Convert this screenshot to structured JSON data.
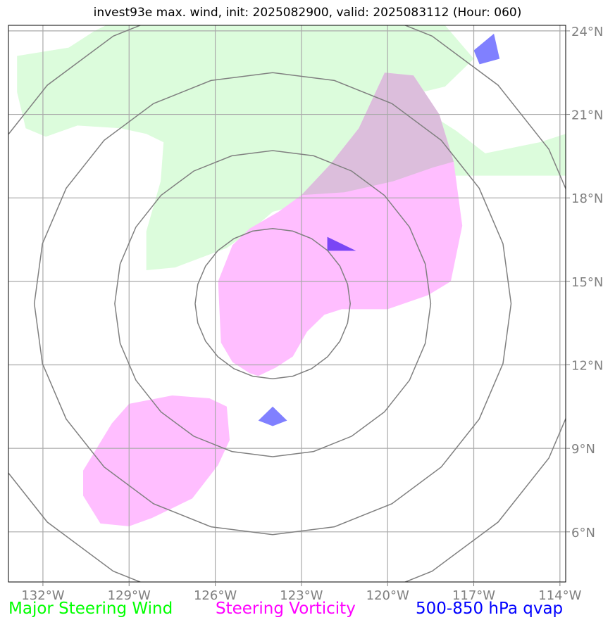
{
  "title": "invest93e max. wind, init: 2025082900, valid: 2025083112 (Hour: 060)",
  "colors": {
    "steering_wind": "#00ff00",
    "steering_vorticity": "#ff00ff",
    "qvap": "#0000ff",
    "wind_fill": "#dcfcdc",
    "vorticity_fill": "#ffbeff",
    "overlap_fill": "#dcbedc",
    "qvap_fill": "#8080ff",
    "qvap_dark_fill": "#7a45f5",
    "grid": "#aaaaaa",
    "range_ring": "#808080",
    "tick_text": "#808080"
  },
  "map": {
    "projection": "lat-lon",
    "lon_range": [
      -133.2,
      -113.8
    ],
    "lat_range": [
      4.2,
      24.2
    ],
    "grid": true,
    "center": {
      "lon": -124.0,
      "lat": 14.2
    },
    "range_rings_deg": [
      2.7,
      5.5,
      8.3,
      11.1
    ],
    "lon_ticks": [
      {
        "value": -132,
        "label": "132°W"
      },
      {
        "value": -129,
        "label": "129°W"
      },
      {
        "value": -126,
        "label": "126°W"
      },
      {
        "value": -123,
        "label": "123°W"
      },
      {
        "value": -120,
        "label": "120°W"
      },
      {
        "value": -117,
        "label": "117°W"
      },
      {
        "value": -114,
        "label": "114°W"
      }
    ],
    "lat_ticks": [
      {
        "value": 24,
        "label": "24°N"
      },
      {
        "value": 21,
        "label": "21°N"
      },
      {
        "value": 18,
        "label": "18°N"
      },
      {
        "value": 15,
        "label": "15°N"
      },
      {
        "value": 12,
        "label": "12°N"
      },
      {
        "value": 9,
        "label": "9°N"
      },
      {
        "value": 6,
        "label": "6°N"
      }
    ]
  },
  "regions": {
    "steering_wind": [
      [
        [
          -129.8,
          24.2
        ],
        [
          -118.0,
          24.2
        ],
        [
          -117.0,
          23.0
        ],
        [
          -118.0,
          22.0
        ],
        [
          -118.8,
          21.8
        ],
        [
          -118.5,
          21.0
        ],
        [
          -117.6,
          20.4
        ],
        [
          -116.6,
          19.6
        ],
        [
          -114.7,
          20.0
        ],
        [
          -113.8,
          20.3
        ],
        [
          -113.8,
          18.8
        ],
        [
          -118.0,
          18.8
        ],
        [
          -121.5,
          18.2
        ],
        [
          -124.0,
          17.5
        ],
        [
          -124.8,
          16.8
        ],
        [
          -125.6,
          16.2
        ],
        [
          -127.4,
          15.5
        ],
        [
          -128.4,
          15.4
        ],
        [
          -128.4,
          16.8
        ],
        [
          -127.9,
          18.6
        ],
        [
          -127.8,
          20.0
        ],
        [
          -128.4,
          20.3
        ],
        [
          -129.3,
          20.5
        ],
        [
          -130.8,
          20.6
        ],
        [
          -131.9,
          20.2
        ],
        [
          -132.6,
          20.5
        ],
        [
          -132.9,
          21.8
        ],
        [
          -132.9,
          23.1
        ],
        [
          -131.1,
          23.4
        ],
        [
          -130.2,
          24.0
        ]
      ],
      [
        [
          -125.5,
          23.0
        ],
        [
          -123.5,
          23.0
        ],
        [
          -122.1,
          22.7
        ],
        [
          -121.2,
          21.8
        ],
        [
          -122.7,
          21.3
        ],
        [
          -124.5,
          21.0
        ],
        [
          -126.5,
          21.0
        ],
        [
          -126.0,
          21.8
        ]
      ],
      [
        [
          -129.8,
          24.2
        ],
        [
          -128.0,
          24.2
        ],
        [
          -128.5,
          23.5
        ],
        [
          -129.5,
          23.3
        ],
        [
          -130.0,
          23.7
        ]
      ]
    ],
    "steering_vorticity": [
      [
        [
          -120.1,
          22.5
        ],
        [
          -119.1,
          22.4
        ],
        [
          -118.2,
          21.0
        ],
        [
          -117.7,
          19.3
        ],
        [
          -117.4,
          17.0
        ],
        [
          -117.8,
          15.0
        ],
        [
          -118.6,
          14.5
        ],
        [
          -120.0,
          14.0
        ],
        [
          -121.6,
          14.0
        ],
        [
          -122.2,
          13.8
        ],
        [
          -122.8,
          13.2
        ],
        [
          -123.3,
          12.3
        ],
        [
          -123.9,
          11.9
        ],
        [
          -124.5,
          11.6
        ],
        [
          -124.8,
          11.7
        ],
        [
          -125.4,
          12.1
        ],
        [
          -125.8,
          12.8
        ],
        [
          -125.9,
          15.0
        ],
        [
          -125.4,
          16.3
        ],
        [
          -124.8,
          16.9
        ],
        [
          -123.8,
          17.5
        ],
        [
          -123.0,
          18.1
        ],
        [
          -122.0,
          19.2
        ],
        [
          -121.0,
          20.5
        ]
      ],
      [
        [
          -126.2,
          10.8
        ],
        [
          -125.6,
          10.5
        ],
        [
          -125.5,
          9.3
        ],
        [
          -125.9,
          8.4
        ],
        [
          -126.8,
          7.2
        ],
        [
          -128.2,
          6.5
        ],
        [
          -129.0,
          6.2
        ],
        [
          -130.0,
          6.3
        ],
        [
          -130.6,
          7.3
        ],
        [
          -130.6,
          8.2
        ],
        [
          -129.6,
          9.9
        ],
        [
          -129.0,
          10.6
        ],
        [
          -127.5,
          10.9
        ]
      ]
    ],
    "overlap": [
      [
        [
          -120.1,
          22.5
        ],
        [
          -119.1,
          22.4
        ],
        [
          -118.2,
          21.0
        ],
        [
          -117.7,
          19.3
        ],
        [
          -118.4,
          19.1
        ],
        [
          -119.8,
          18.6
        ],
        [
          -121.5,
          18.2
        ],
        [
          -123.0,
          18.1
        ],
        [
          -122.0,
          19.2
        ],
        [
          -121.0,
          20.5
        ]
      ]
    ],
    "qvap": [
      [
        [
          -116.3,
          23.9
        ],
        [
          -116.1,
          23.0
        ],
        [
          -116.8,
          22.8
        ],
        [
          -117.0,
          23.3
        ]
      ],
      [
        [
          -124.5,
          10.0
        ],
        [
          -124.0,
          10.5
        ],
        [
          -123.5,
          10.0
        ],
        [
          -124.0,
          9.8
        ]
      ]
    ],
    "qvap_dark": [
      [
        [
          -122.1,
          16.6
        ],
        [
          -121.1,
          16.1
        ],
        [
          -122.1,
          16.1
        ]
      ]
    ]
  },
  "legend": {
    "steering_wind": "Major Steering Wind",
    "steering_vorticity": "Steering Vorticity",
    "qvap": "500-850 hPa qvap"
  }
}
